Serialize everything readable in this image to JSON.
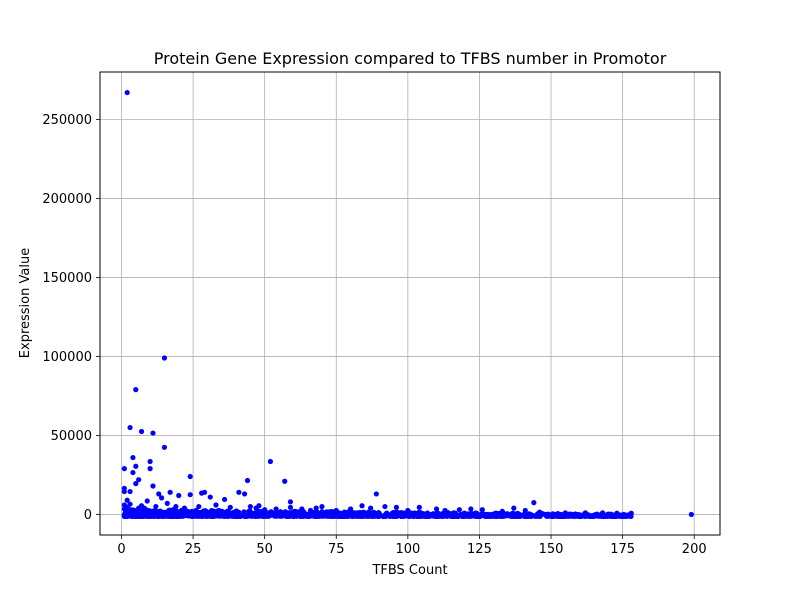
{
  "chart_data": {
    "type": "scatter",
    "title": "Protein Gene Expression compared to TFBS number in Promotor",
    "xlabel": "TFBS Count",
    "ylabel": "Expression Value",
    "xlim": [
      -7.5,
      209
    ],
    "ylim": [
      -13000,
      280000
    ],
    "xticks": [
      0,
      25,
      50,
      75,
      100,
      125,
      150,
      175,
      200
    ],
    "yticks": [
      0,
      50000,
      100000,
      150000,
      200000,
      250000
    ],
    "grid": true,
    "marker_color": "#0000ff",
    "series": [
      {
        "x": [
          2,
          15,
          5,
          3,
          7,
          11,
          15,
          4,
          10,
          1,
          5,
          10,
          52,
          57,
          24,
          4,
          1,
          6,
          5,
          11,
          17,
          13,
          44,
          29,
          3,
          1,
          28,
          41,
          20,
          31,
          43,
          89,
          14,
          2,
          24,
          59,
          1,
          36,
          144,
          9,
          16,
          3,
          7,
          48,
          2,
          1,
          8,
          12,
          6,
          3,
          19,
          22,
          33,
          27,
          38,
          45,
          47,
          54,
          59,
          63,
          68,
          70,
          84,
          87,
          92,
          96,
          104,
          110,
          118,
          122,
          126,
          137,
          141,
          4,
          18,
          26,
          34,
          50,
          66,
          75,
          80,
          100,
          113,
          133,
          146,
          155,
          162,
          168,
          173,
          178,
          199
        ],
        "y": [
          267000,
          99000,
          79000,
          55000,
          52500,
          51500,
          42500,
          36000,
          33500,
          29000,
          30500,
          29000,
          33500,
          21000,
          24000,
          26500,
          16500,
          22000,
          19500,
          18000,
          14000,
          13000,
          21500,
          14000,
          14500,
          14500,
          13500,
          14000,
          12000,
          11000,
          13000,
          13000,
          10500,
          9000,
          12500,
          8000,
          6000,
          9500,
          7500,
          8500,
          7000,
          6500,
          5500,
          5500,
          4500,
          3500,
          4000,
          5000,
          4000,
          3000,
          5000,
          4000,
          6000,
          5000,
          4500,
          5000,
          4000,
          3500,
          4500,
          3500,
          4000,
          5000,
          5500,
          4000,
          5000,
          4500,
          4500,
          3500,
          3000,
          3500,
          3000,
          4000,
          2500,
          2000,
          3000,
          2500,
          2500,
          3000,
          2500,
          2500,
          3500,
          2500,
          2500,
          2000,
          1500,
          1000,
          1000,
          1000,
          800,
          800,
          0
        ]
      }
    ],
    "band": {
      "x_min": 1,
      "x_max": 178,
      "y_min": -1200,
      "y_max": 3000,
      "count": 1400
    }
  }
}
